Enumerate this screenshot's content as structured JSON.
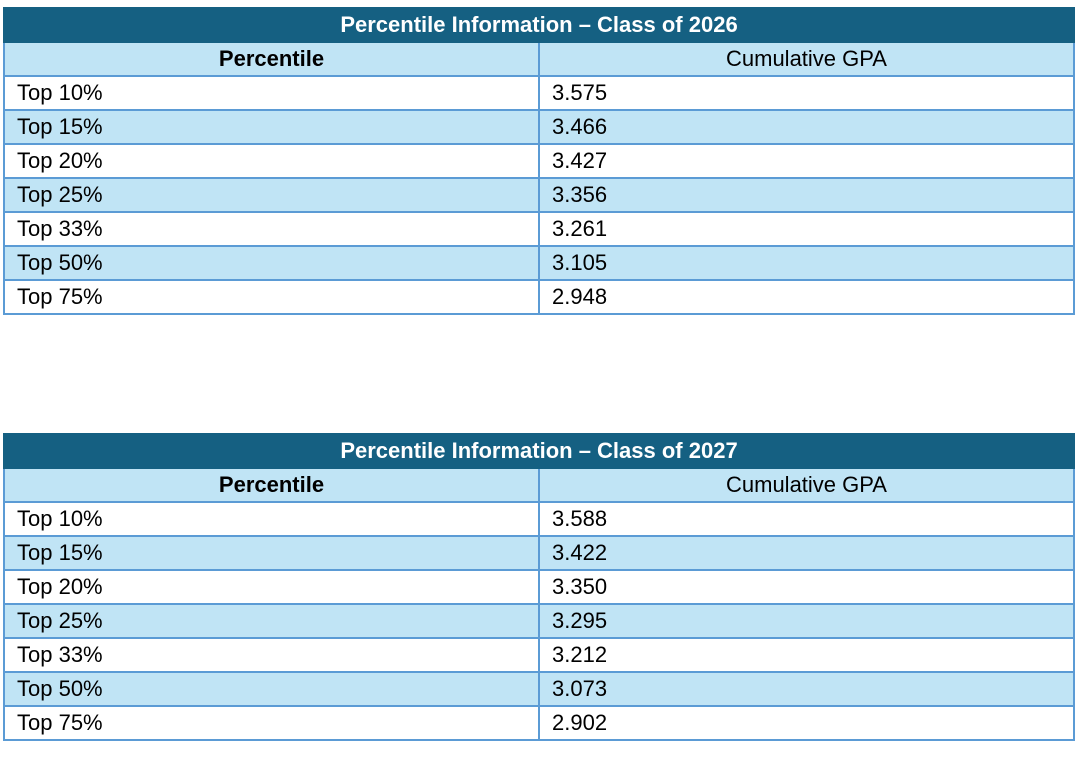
{
  "tables": [
    {
      "title": "Percentile Information – Class of 2026",
      "headers": {
        "percentile": "Percentile",
        "gpa": "Cumulative GPA"
      },
      "rows": [
        {
          "percentile": "Top 10%",
          "gpa": "3.575"
        },
        {
          "percentile": "Top 15%",
          "gpa": "3.466"
        },
        {
          "percentile": "Top 20%",
          "gpa": "3.427"
        },
        {
          "percentile": "Top 25%",
          "gpa": "3.356"
        },
        {
          "percentile": "Top 33%",
          "gpa": "3.261"
        },
        {
          "percentile": "Top 50%",
          "gpa": "3.105"
        },
        {
          "percentile": "Top 75%",
          "gpa": "2.948"
        }
      ]
    },
    {
      "title": "Percentile Information – Class of 2027",
      "headers": {
        "percentile": "Percentile",
        "gpa": "Cumulative GPA"
      },
      "rows": [
        {
          "percentile": "Top 10%",
          "gpa": "3.588"
        },
        {
          "percentile": "Top 15%",
          "gpa": "3.422"
        },
        {
          "percentile": "Top 20%",
          "gpa": "3.350"
        },
        {
          "percentile": "Top 25%",
          "gpa": "3.295"
        },
        {
          "percentile": "Top 33%",
          "gpa": "3.212"
        },
        {
          "percentile": "Top 50%",
          "gpa": "3.073"
        },
        {
          "percentile": "Top 75%",
          "gpa": "2.902"
        }
      ]
    }
  ],
  "colors": {
    "title_bar": "#156082",
    "band": "#c0e4f5",
    "border": "#5b9bd5"
  }
}
